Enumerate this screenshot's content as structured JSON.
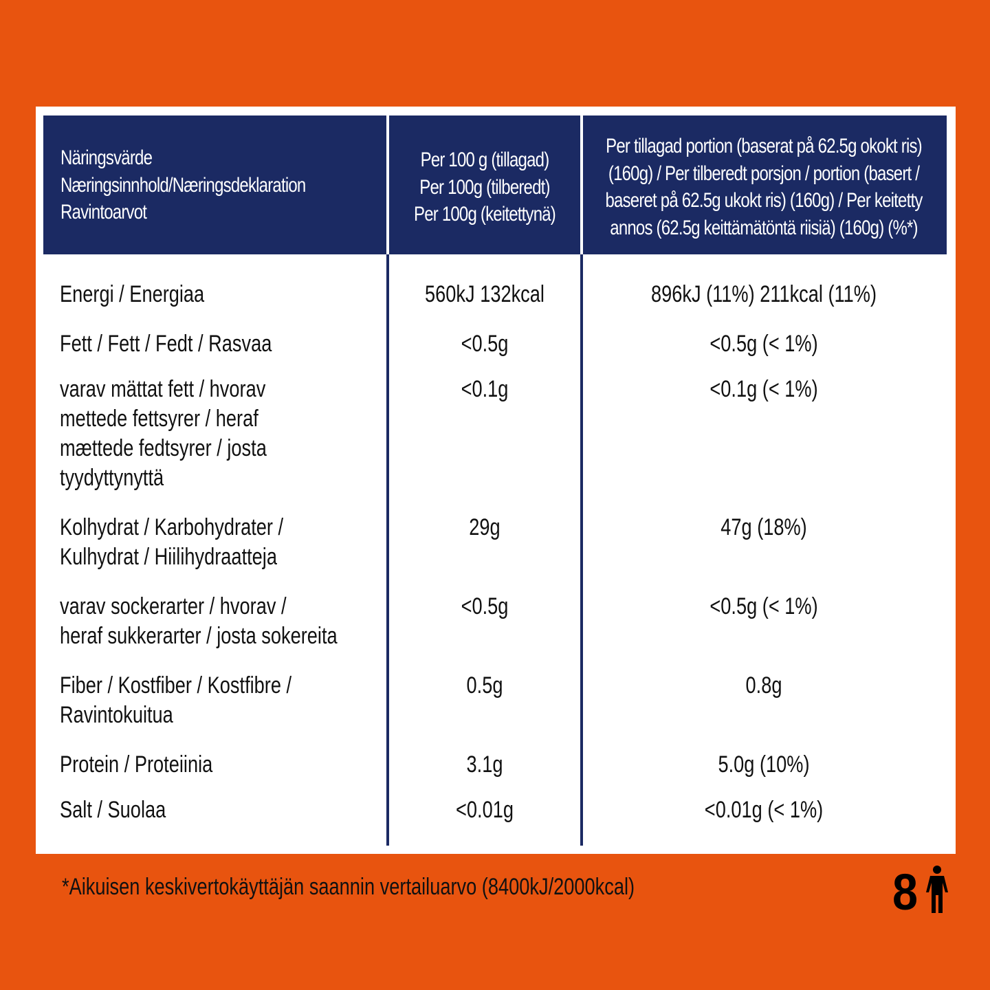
{
  "header": {
    "columns": [
      [
        "Näringsvärde",
        "Næringsinnhold/Næringsdeklaration",
        "Ravintoarvot"
      ],
      [
        "Per 100 g (tillagad)",
        "Per 100g (tilberedt)",
        "Per 100g (keitettynä)"
      ],
      [
        "Per tillagad portion (baserat på 62.5g okokt ris)",
        "(160g) / Per tilberedt porsjon / portion (basert /",
        "baseret på 62.5g ukokt ris) (160g) / Per keitetty",
        "annos (62.5g keittämätöntä riisiä) (160g) (%*)"
      ]
    ]
  },
  "table": {
    "rows": [
      {
        "label": [
          "Energi / Energiaa"
        ],
        "per_100g": "560kJ 132kcal",
        "per_portion": "896kJ (11%) 211kcal (11%)"
      },
      {
        "label": [
          "Fett / Fett / Fedt / Rasvaa"
        ],
        "per_100g": "<0.5g",
        "per_portion": "<0.5g (< 1%)"
      },
      {
        "label": [
          "varav mättat fett / hvorav",
          "mettede fettsyrer / heraf",
          "mættede fedtsyrer / josta",
          "tyydyttynyttä"
        ],
        "per_100g": "<0.1g",
        "per_portion": "<0.1g (< 1%)"
      },
      {
        "label": [
          "Kolhydrat / Karbohydrater /",
          "Kulhydrat / Hiilihydraatteja"
        ],
        "per_100g": "29g",
        "per_portion": "47g (18%)"
      },
      {
        "label": [
          "varav sockerarter / hvorav /",
          "heraf sukkerarter / josta sokereita"
        ],
        "per_100g": "<0.5g",
        "per_portion": "<0.5g (< 1%)"
      },
      {
        "label": [
          "Fiber / Kostfiber / Kostfibre /",
          "Ravintokuitua"
        ],
        "per_100g": "0.5g",
        "per_portion": "0.8g"
      },
      {
        "label": [
          "Protein / Proteiinia"
        ],
        "per_100g": "3.1g",
        "per_portion": "5.0g (10%)"
      },
      {
        "label": [
          "Salt / Suolaa"
        ],
        "per_100g": "<0.01g",
        "per_portion": "<0.01g (< 1%)"
      }
    ]
  },
  "footer": {
    "note": "*Aikuisen keskivertokäyttäjän saannin vertailuarvo (8400kJ/2000kcal)",
    "servings": "8"
  }
}
